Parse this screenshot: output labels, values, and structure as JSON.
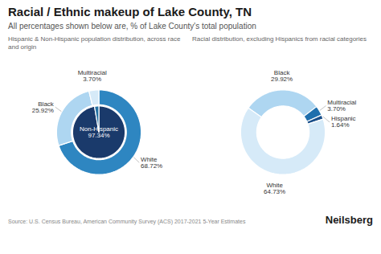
{
  "title": "Racial / Ethnic makeup of Lake County, TN",
  "subtitle": "All percentages shown below are, % of Lake County's total population",
  "annotations": [
    "Source: U.S. Census Bureau, American Community Survey (ACS) 2017-2021 5-Year Estimates",
    "Neilsberg"
  ],
  "chart_data": [
    {
      "type": "donut",
      "title": "Hispanic & Non-Hispanic population distribution, across race and origin",
      "data_labels": true,
      "series": [
        {
          "categories": [
            "White",
            "Black",
            "Multiracial"
          ],
          "values": [
            68.72,
            25.92,
            3.7
          ],
          "value_labels": [
            "68.72%",
            "25.92%",
            "3.70%"
          ],
          "colors": [
            "#2e86c1",
            "#aed6f1",
            "#d6eaf8"
          ]
        },
        {
          "categories": [
            "Non-Hispanic",
            null
          ],
          "values": [
            97.34,
            2.66
          ],
          "value_labels": [
            "97.34%",
            null
          ],
          "colors": [
            "#1a3a6b",
            "#2471a3"
          ]
        }
      ]
    },
    {
      "type": "donut",
      "title": "Racial distribution, excluding Hispanics from racial categories",
      "data_labels": true,
      "categories": [
        "Black",
        "Multiracial",
        "Hispanic",
        "White"
      ],
      "values": [
        29.92,
        3.7,
        1.64,
        64.73
      ],
      "value_labels": [
        "29.92%",
        "3.70%",
        "1.64%",
        "64.73%"
      ],
      "colors": [
        "#aed6f1",
        "#1f6fad",
        "#1a4f8a",
        "#d6eaf8"
      ]
    }
  ]
}
